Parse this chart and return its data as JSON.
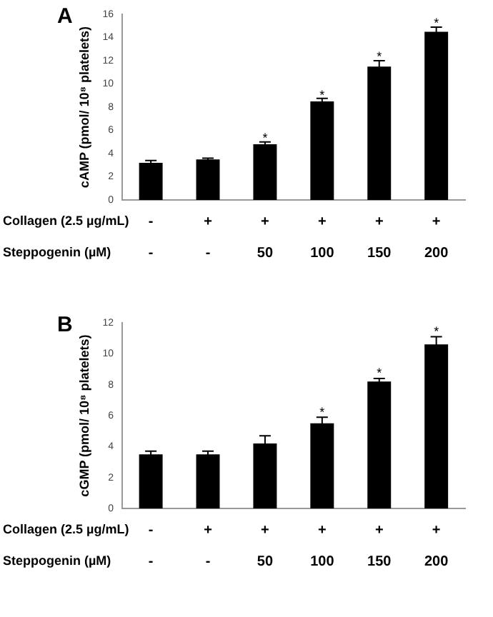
{
  "chart_data": [
    {
      "type": "bar",
      "title": "A",
      "ylabel": "cAMP (pmol/ 10⁸ platelets)",
      "xlabel": "Steppogenin (µM)",
      "categories": [
        "-",
        "-",
        "50",
        "100",
        "150",
        "200"
      ],
      "series": [
        {
          "color": "#000000",
          "values": [
            3.2,
            3.5,
            4.8,
            8.5,
            11.5,
            14.5
          ],
          "errors": [
            0.2,
            0.1,
            0.2,
            0.25,
            0.5,
            0.4
          ]
        }
      ],
      "ylim": [
        0,
        16
      ],
      "yticks": [
        0,
        2,
        4,
        6,
        8,
        10,
        12,
        14,
        16
      ],
      "grid": false,
      "legend": false,
      "annotations": [
        "Collagen (2.5 µg/mL)",
        "-",
        "+",
        "+",
        "+",
        "+",
        "+",
        {
          "text": "*",
          "x": "50",
          "y": 5.3
        },
        {
          "text": "*",
          "x": "100",
          "y": 9.0
        },
        {
          "text": "*",
          "x": "150",
          "y": 12.3
        },
        {
          "text": "*",
          "x": "200",
          "y": 15.2
        }
      ]
    },
    {
      "type": "bar",
      "title": "B",
      "ylabel": "cGMP (pmol/ 10⁸ platelets)",
      "xlabel": "Steppogenin (µM)",
      "categories": [
        "-",
        "-",
        "50",
        "100",
        "150",
        "200"
      ],
      "series": [
        {
          "color": "#000000",
          "values": [
            3.5,
            3.5,
            4.2,
            5.5,
            8.2,
            10.6
          ],
          "errors": [
            0.2,
            0.2,
            0.5,
            0.4,
            0.2,
            0.5
          ]
        }
      ],
      "ylim": [
        0,
        12
      ],
      "yticks": [
        0,
        2,
        4,
        6,
        8,
        10,
        12
      ],
      "grid": false,
      "legend": false,
      "annotations": [
        "Collagen (2.5 µg/mL)",
        "-",
        "+",
        "+",
        "+",
        "+",
        "+",
        {
          "text": "*",
          "x": "100",
          "y": 6.2
        },
        {
          "text": "*",
          "x": "150",
          "y": 8.7
        },
        {
          "text": "*",
          "x": "200",
          "y": 11.4
        }
      ]
    }
  ]
}
